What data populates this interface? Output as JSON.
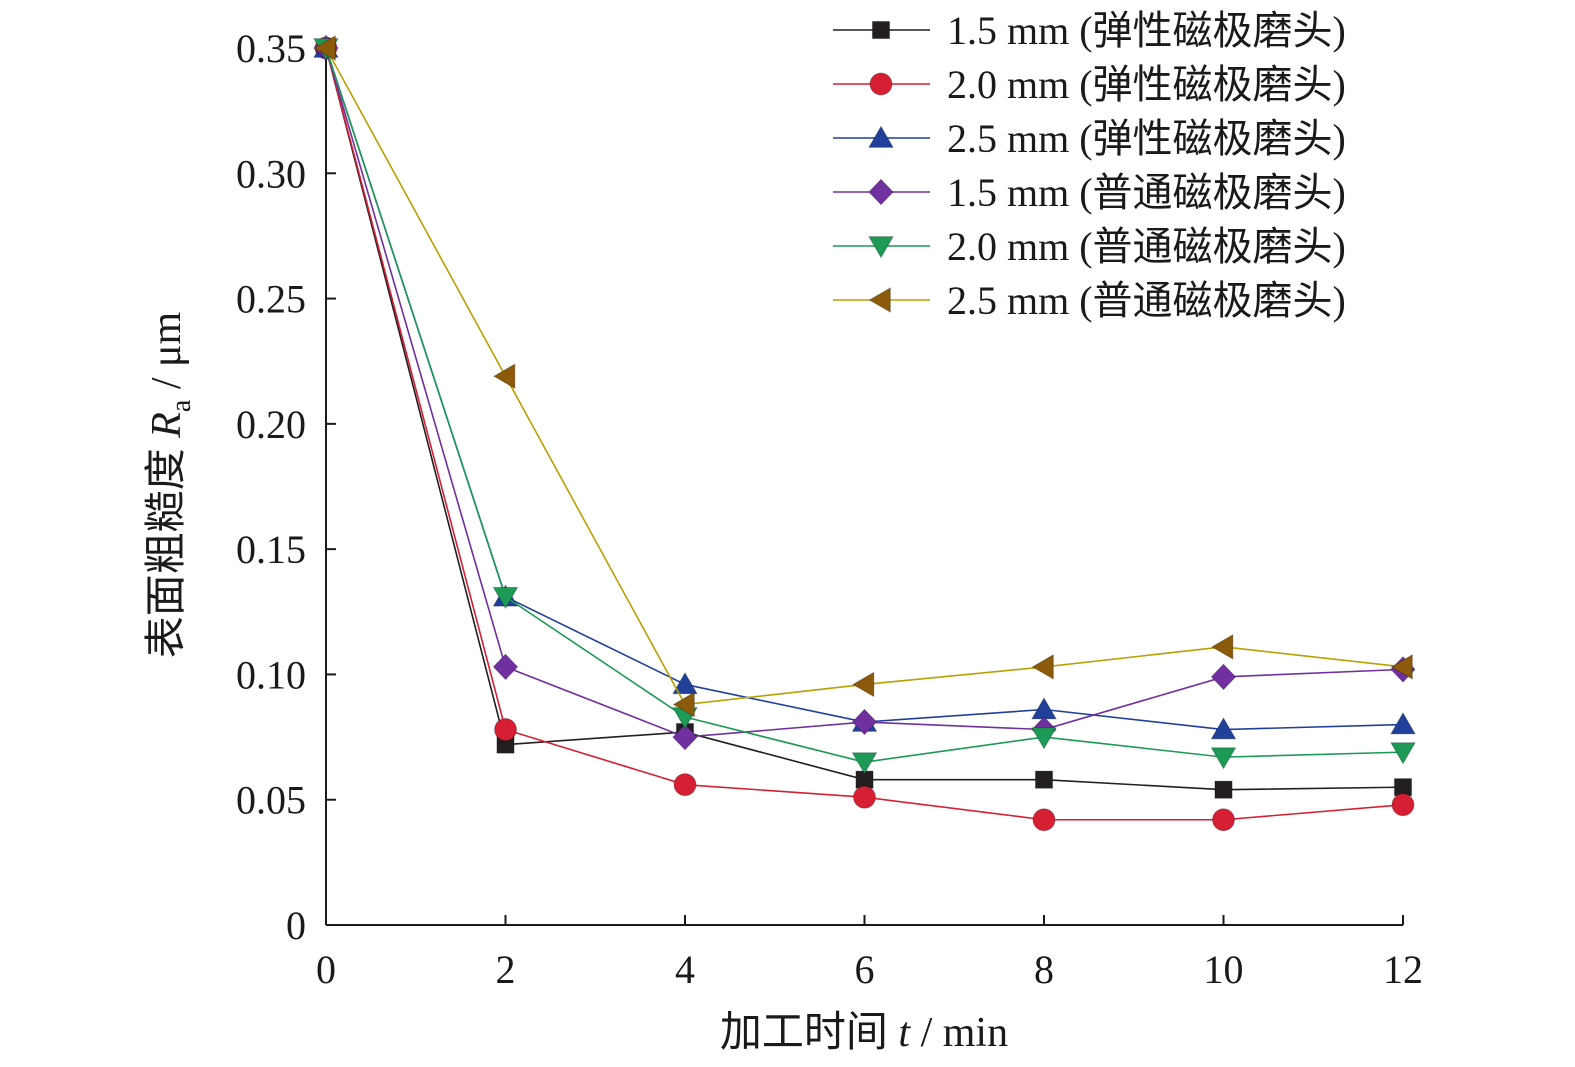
{
  "chart_data": {
    "type": "line",
    "x": [
      0,
      2,
      4,
      6,
      8,
      10,
      12
    ],
    "xlabel_prefix": "加工时间 ",
    "xlabel_var": "t",
    "xlabel_suffix": " / min",
    "ylabel_prefix": "表面粗糙度 ",
    "ylabel_var": "R",
    "ylabel_sub": "a",
    "ylabel_suffix": " / μm",
    "xlim": [
      0,
      12
    ],
    "ylim": [
      0,
      0.35
    ],
    "xticks": [
      0,
      2,
      4,
      6,
      8,
      10,
      12
    ],
    "xtick_labels": [
      "0",
      "2",
      "4",
      "6",
      "8",
      "10",
      "12"
    ],
    "yticks": [
      0,
      0.05,
      0.1,
      0.15,
      0.2,
      0.25,
      0.3,
      0.35
    ],
    "ytick_labels": [
      "0",
      "0.05",
      "0.10",
      "0.15",
      "0.20",
      "0.25",
      "0.30",
      "0.35"
    ],
    "grid": false,
    "legend_position": "top-right",
    "series": [
      {
        "name": "1.5 mm (弹性磁极磨头)",
        "marker": "square",
        "color": "#231f20",
        "values": [
          0.35,
          0.072,
          0.077,
          0.058,
          0.058,
          0.054,
          0.055
        ]
      },
      {
        "name": "2.0 mm (弹性磁极磨头)",
        "marker": "circle",
        "color": "#d71f33",
        "values": [
          0.35,
          0.078,
          0.056,
          0.051,
          0.042,
          0.042,
          0.048
        ]
      },
      {
        "name": "2.5 mm (弹性磁极磨头)",
        "marker": "triangle-up",
        "color": "#21409a",
        "values": [
          0.35,
          0.131,
          0.096,
          0.081,
          0.086,
          0.078,
          0.08
        ]
      },
      {
        "name": "1.5 mm (普通磁极磨头)",
        "marker": "diamond",
        "color": "#7030a0",
        "values": [
          0.35,
          0.103,
          0.075,
          0.081,
          0.078,
          0.099,
          0.102
        ]
      },
      {
        "name": "2.0 mm (普通磁极磨头)",
        "marker": "triangle-down",
        "color": "#1d9a56",
        "values": [
          0.35,
          0.131,
          0.083,
          0.065,
          0.075,
          0.067,
          0.069
        ]
      },
      {
        "name": "2.5 mm (普通磁极磨头)",
        "marker": "triangle-left",
        "color": "#8b5a0b",
        "line_color": "#b8a000",
        "values": [
          0.35,
          0.219,
          0.088,
          0.096,
          0.103,
          0.111,
          0.103
        ]
      }
    ]
  }
}
